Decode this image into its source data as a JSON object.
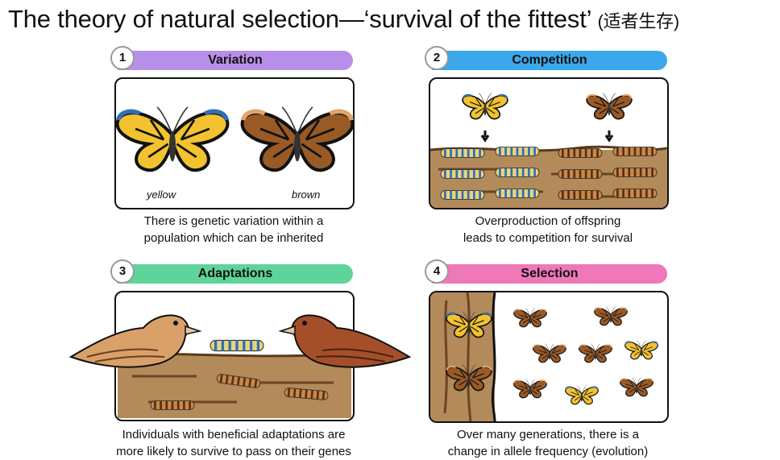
{
  "title": {
    "main": "The theory of natural selection—‘survival of the fittest’",
    "cn": "(适者生存)"
  },
  "panels": [
    {
      "number": "1",
      "heading": "Variation",
      "color": "#b88fe8",
      "labels": [
        "yellow",
        "brown"
      ],
      "caption": [
        "There is genetic variation within a",
        "population which can be inherited"
      ]
    },
    {
      "number": "2",
      "heading": "Competition",
      "color": "#3aa8ea",
      "caption": [
        "Overproduction of offspring",
        "leads to competition for survival"
      ]
    },
    {
      "number": "3",
      "heading": "Adaptations",
      "color": "#5fd49a",
      "caption": [
        "Individuals with beneficial adaptations are",
        "more likely to survive to pass on their genes"
      ]
    },
    {
      "number": "4",
      "heading": "Selection",
      "color": "#ee78b8",
      "caption": [
        "Over many generations, there is a",
        "change in allele frequency (evolution)"
      ]
    }
  ],
  "colors": {
    "yellow_wing": "#f2c230",
    "brown_wing": "#9a5a26",
    "wood": "#b38a5a",
    "bird_light": "#d9a06a",
    "bird_dark": "#a44f2a"
  }
}
